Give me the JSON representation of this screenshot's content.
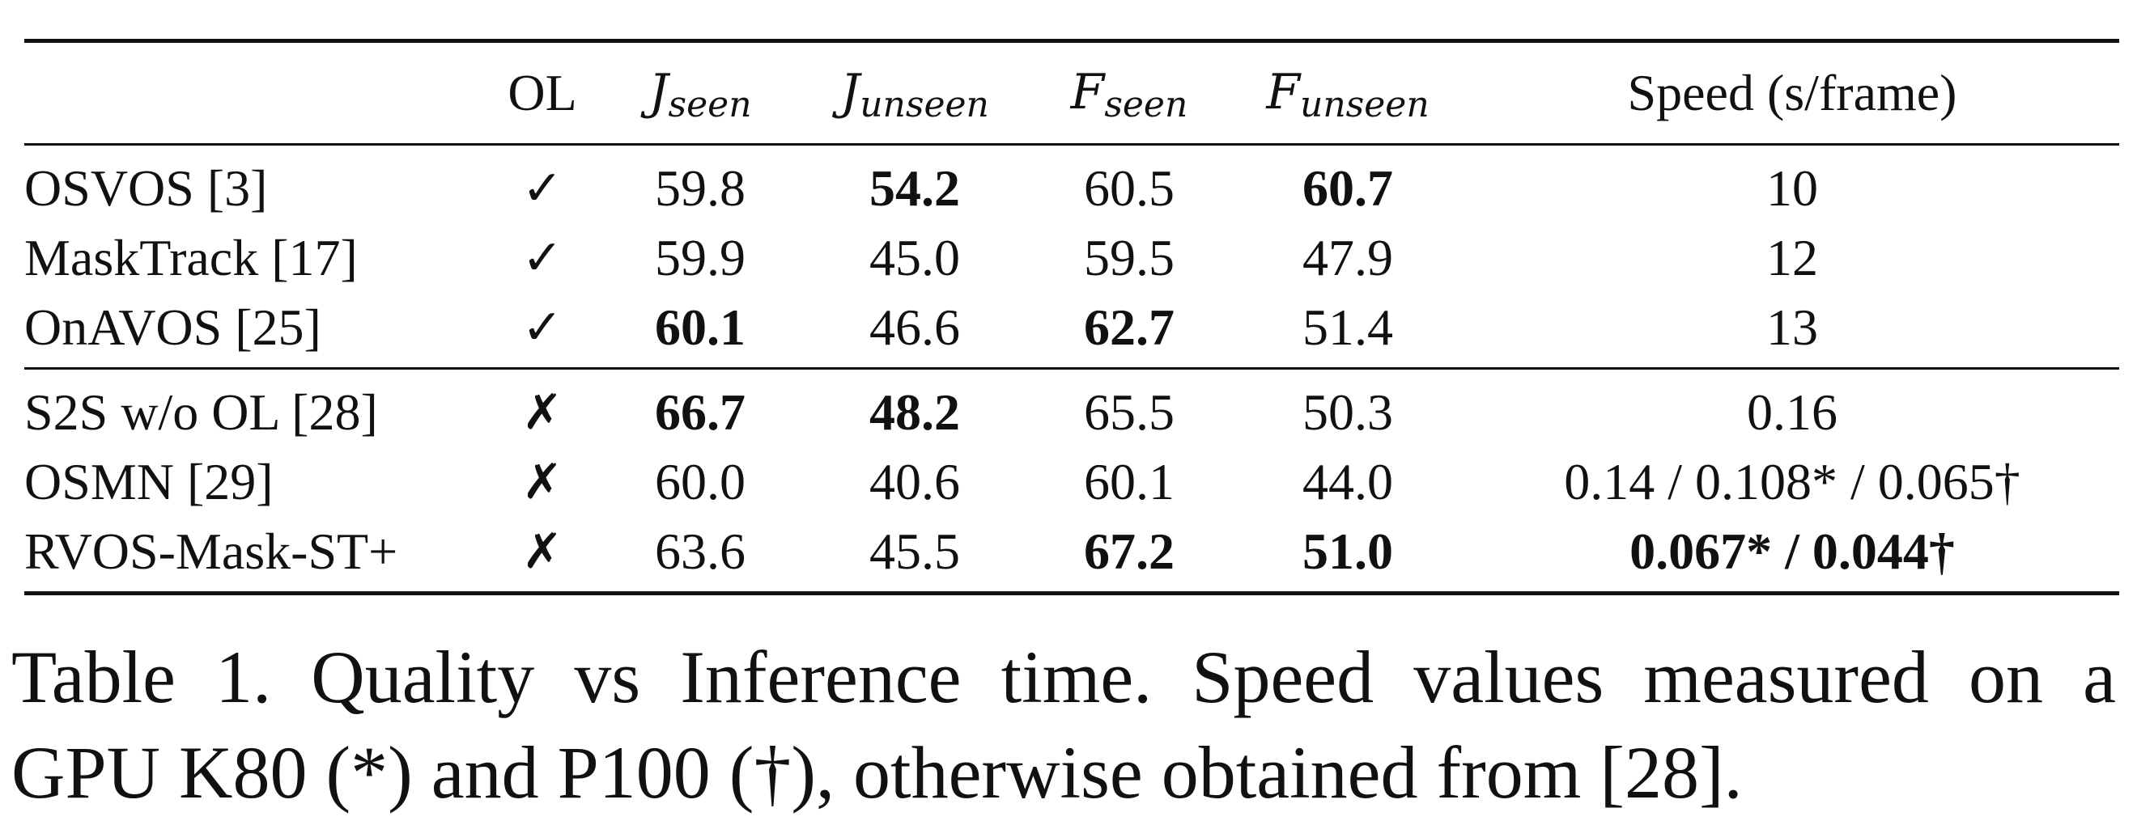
{
  "table": {
    "headers": {
      "method": "",
      "ol": "OL",
      "j_seen": {
        "base": "J",
        "sub": "seen"
      },
      "j_unseen": {
        "base": "J",
        "sub": "unseen"
      },
      "f_seen": {
        "base": "F",
        "sub": "seen"
      },
      "f_unseen": {
        "base": "F",
        "sub": "unseen"
      },
      "speed": "Speed (s/frame)"
    },
    "groups": [
      {
        "rows": [
          {
            "method": "OSVOS [3]",
            "ol": "✓",
            "j_seen": "59.8",
            "j_unseen": "54.2",
            "f_seen": "60.5",
            "f_unseen": "60.7",
            "speed": "10",
            "bold": {
              "j_seen": false,
              "j_unseen": true,
              "f_seen": false,
              "f_unseen": true,
              "speed": false
            }
          },
          {
            "method": "MaskTrack [17]",
            "ol": "✓",
            "j_seen": "59.9",
            "j_unseen": "45.0",
            "f_seen": "59.5",
            "f_unseen": "47.9",
            "speed": "12",
            "bold": {
              "j_seen": false,
              "j_unseen": false,
              "f_seen": false,
              "f_unseen": false,
              "speed": false
            }
          },
          {
            "method": "OnAVOS [25]",
            "ol": "✓",
            "j_seen": "60.1",
            "j_unseen": "46.6",
            "f_seen": "62.7",
            "f_unseen": "51.4",
            "speed": "13",
            "bold": {
              "j_seen": true,
              "j_unseen": false,
              "f_seen": true,
              "f_unseen": false,
              "speed": false
            }
          }
        ]
      },
      {
        "rows": [
          {
            "method": "S2S w/o OL [28]",
            "ol": "✗",
            "j_seen": "66.7",
            "j_unseen": "48.2",
            "f_seen": "65.5",
            "f_unseen": "50.3",
            "speed": "0.16",
            "bold": {
              "j_seen": true,
              "j_unseen": true,
              "f_seen": false,
              "f_unseen": false,
              "speed": false
            }
          },
          {
            "method": "OSMN [29]",
            "ol": "✗",
            "j_seen": "60.0",
            "j_unseen": "40.6",
            "f_seen": "60.1",
            "f_unseen": "44.0",
            "speed": "0.14 / 0.108* / 0.065†",
            "bold": {
              "j_seen": false,
              "j_unseen": false,
              "f_seen": false,
              "f_unseen": false,
              "speed": false
            }
          },
          {
            "method": "RVOS-Mask-ST+",
            "ol": "✗",
            "j_seen": "63.6",
            "j_unseen": "45.5",
            "f_seen": "67.2",
            "f_unseen": "51.0",
            "speed": "0.067* / 0.044†",
            "bold": {
              "j_seen": false,
              "j_unseen": false,
              "f_seen": true,
              "f_unseen": true,
              "speed": true
            }
          }
        ]
      }
    ]
  },
  "caption": {
    "line1": "Table 1. Quality vs Inference time.  Speed values measured on a",
    "line2": "GPU K80 (*) and P100 (†), otherwise obtained from [28]."
  }
}
